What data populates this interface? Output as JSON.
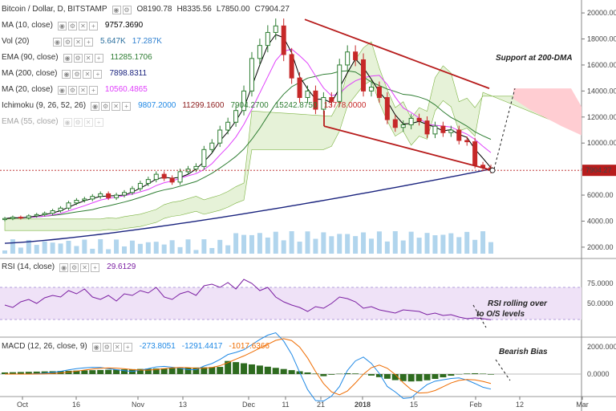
{
  "header": {
    "symbol": "Bitcoin / Dollar, D, BITSTAMP",
    "open": "O8190.78",
    "high": "H8335.56",
    "low": "L7850.00",
    "close": "C7904.27"
  },
  "indicators": [
    {
      "label": "MA (10, close)",
      "values": [
        "9757.3690"
      ],
      "colors": [
        "#000000"
      ]
    },
    {
      "label": "Vol (20)",
      "values": [
        "5.647K",
        "17.287K"
      ],
      "colors": [
        "#2a6f9e",
        "#2f80d0"
      ]
    },
    {
      "label": "EMA (90, close)",
      "values": [
        "11285.1706"
      ],
      "colors": [
        "#2e7d32"
      ]
    },
    {
      "label": "MA (200, close)",
      "values": [
        "7898.8311"
      ],
      "colors": [
        "#1a237e"
      ]
    },
    {
      "label": "MA (20, close)",
      "values": [
        "10560.4865"
      ],
      "colors": [
        "#e040fb"
      ]
    },
    {
      "label": "Ichimoku (9, 26, 52, 26)",
      "values": [
        "9807.2000",
        "11299.1600",
        "7904.2700",
        "15242.8750",
        "13778.0000"
      ],
      "colors": [
        "#1e88e5",
        "#8b1a1a",
        "#2e7d32",
        "#2e7d32",
        "#c62828"
      ]
    },
    {
      "label": "EMA (55, close)",
      "values": [],
      "colors": [],
      "faded": true
    }
  ],
  "price_axis": [
    "20000.00",
    "18000.00",
    "16000.00",
    "14000.00",
    "12000.00",
    "10000.00",
    "8000.00",
    "6000.00",
    "4000.00",
    "2000.00"
  ],
  "last_price": "7904.27",
  "rsi": {
    "label": "RSI (14, close)",
    "value": "29.6129",
    "axis": [
      "75.0000",
      "50.0000"
    ]
  },
  "macd": {
    "label": "MACD (12, 26, close, 9)",
    "values": [
      "-273.8051",
      "-1291.4417",
      "-1017.6366"
    ],
    "axis": [
      "2000.0000",
      "0.0000"
    ]
  },
  "x_axis": [
    "Oct",
    "16",
    "Nov",
    "13",
    "Dec",
    "11",
    "21",
    "2018",
    "15",
    "Feb",
    "12",
    "Mar"
  ],
  "annotations": {
    "support": "Support at 200-DMA",
    "rsi_line1": "RSI rolling over",
    "rsi_line2": "to O/S levels",
    "bias": "Bearish Bias"
  },
  "chart_data": {
    "type": "candlestick",
    "title": "Bitcoin / Dollar, D, BITSTAMP",
    "ylim": [
      1500,
      20500
    ],
    "price_path": [
      4200,
      4300,
      4250,
      4400,
      4500,
      4600,
      4800,
      5000,
      5400,
      5600,
      5700,
      5900,
      6100,
      5800,
      6000,
      6200,
      6500,
      6900,
      7200,
      7600,
      7300,
      7000,
      7800,
      8000,
      8200,
      9500,
      10000,
      11000,
      11600,
      12500,
      14000,
      16500,
      17500,
      18500,
      19000,
      16800,
      15000,
      13500,
      14000,
      12600,
      13500,
      13200,
      16000,
      17000,
      16400,
      14000,
      14300,
      13500,
      11800,
      11200,
      11400,
      11900,
      11700,
      10700,
      11300,
      10800,
      11000,
      10200,
      10100,
      8300,
      8100,
      7904
    ],
    "ma200": [
      2300,
      8000
    ],
    "resistance_line": [
      [
        19500,
        "Dec 17"
      ],
      [
        14200,
        "Feb 6"
      ]
    ],
    "support_line": [
      [
        11300,
        "Dec 22"
      ],
      [
        7900,
        "Feb 6"
      ]
    ],
    "series": [
      {
        "name": "MA (10, close)",
        "color": "#000000"
      },
      {
        "name": "MA (20, close)",
        "color": "#e040fb"
      },
      {
        "name": "EMA (90, close)",
        "color": "#2e7d32"
      },
      {
        "name": "MA (200, close)",
        "color": "#1a237e"
      }
    ],
    "rsi_value": 29.6129,
    "macd_values": [
      -273.8051,
      -1291.4417,
      -1017.6366
    ]
  },
  "colors": {
    "up": "#2e7d32",
    "down": "#c62828",
    "trend": "#b71c1c",
    "rsi_line": "#7b1fa2",
    "rsi_band": "#efe2f7",
    "cloud_green": "#dcedc8",
    "cloud_red": "#ffcdd2",
    "volume": "#9ecbe8"
  }
}
